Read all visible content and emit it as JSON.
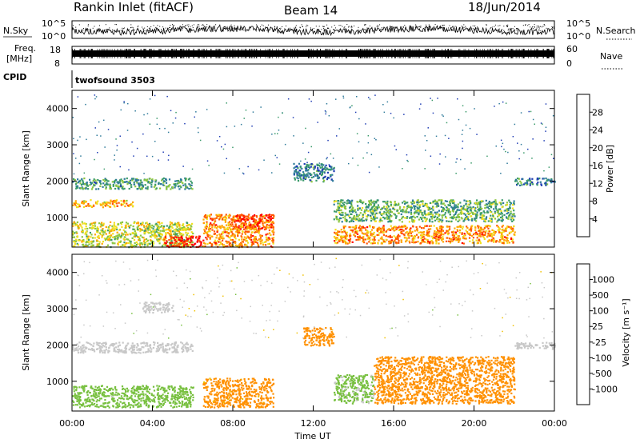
{
  "header": {
    "station": "Rankin Inlet (fitACF)",
    "beam": "Beam 14",
    "date": "18/Jun/2014"
  },
  "strips": {
    "nsky_label": "N.Sky",
    "nsky_ticks": [
      "10^5",
      "10^0"
    ],
    "nsearch_label": "N.Search",
    "nsearch_ticks": [
      "10^5",
      "10^0"
    ],
    "freq_label": "Freq.",
    "freq_unit": "[MHz]",
    "freq_ticks": [
      "18",
      "8"
    ],
    "nave_label": "Nave",
    "nave_ticks": [
      "60",
      "0"
    ],
    "cpid_label": "CPID",
    "cpid_value": "twofsound 3503"
  },
  "colorbars": {
    "power": {
      "label": "Power [dB]",
      "ticks": [
        "28",
        "24",
        "20",
        "16",
        "12",
        "8",
        "4"
      ],
      "colors": [
        "#0000ff",
        "#1e3cb4",
        "#2e7a9a",
        "#3a9a6a",
        "#8cc63f",
        "#f0e020",
        "#ffa500",
        "#ff5500",
        "#ff0000"
      ]
    },
    "velocity": {
      "label": "Velocity [m s⁻¹]",
      "ticks": [
        "1000",
        "500",
        "100",
        "25",
        "-25",
        "-100",
        "-500",
        "-1000"
      ],
      "colors": [
        "#2040c0",
        "#3a7a8a",
        "#3a9a5a",
        "#78c040",
        "#c8c8c8",
        "#f0c000",
        "#ff9000",
        "#ff6000",
        "#ff0000"
      ]
    }
  },
  "chart_data": [
    {
      "type": "heatmap",
      "panel": "power",
      "xlabel": "",
      "ylabel": "Slant Range [km]",
      "x_ticks": [
        "00:00",
        "04:00",
        "08:00",
        "12:00",
        "16:00",
        "20:00",
        "00:00"
      ],
      "y_ticks": [
        "1000",
        "2000",
        "3000",
        "4000"
      ],
      "ylim": [
        180,
        4500
      ],
      "x_range_hours": [
        0,
        24
      ],
      "regions": [
        {
          "x": [
            0.0,
            6.0
          ],
          "y": [
            200,
            900
          ],
          "value": 18
        },
        {
          "x": [
            0.0,
            3.0
          ],
          "y": [
            1300,
            1500
          ],
          "value": 22
        },
        {
          "x": [
            0.0,
            6.0
          ],
          "y": [
            1800,
            2100
          ],
          "value": 12
        },
        {
          "x": [
            4.5,
            6.5
          ],
          "y": [
            200,
            500
          ],
          "value": 30
        },
        {
          "x": [
            6.5,
            10.0
          ],
          "y": [
            200,
            1100
          ],
          "value": 24
        },
        {
          "x": [
            8.0,
            10.0
          ],
          "y": [
            700,
            1100
          ],
          "value": 28
        },
        {
          "x": [
            11.0,
            13.0
          ],
          "y": [
            2000,
            2500
          ],
          "value": 10
        },
        {
          "x": [
            13.0,
            22.0
          ],
          "y": [
            900,
            1500
          ],
          "value": 14
        },
        {
          "x": [
            13.0,
            22.0
          ],
          "y": [
            300,
            800
          ],
          "value": 24
        },
        {
          "x": [
            22.0,
            24.0
          ],
          "y": [
            1900,
            2100
          ],
          "value": 10
        }
      ]
    },
    {
      "type": "heatmap",
      "panel": "velocity",
      "xlabel": "Time UT",
      "ylabel": "Slant Range [km]",
      "x_ticks": [
        "00:00",
        "04:00",
        "08:00",
        "12:00",
        "16:00",
        "20:00",
        "00:00"
      ],
      "y_ticks": [
        "1000",
        "2000",
        "3000",
        "4000"
      ],
      "ylim": [
        180,
        4500
      ],
      "x_range_hours": [
        0,
        24
      ],
      "regions": [
        {
          "x": [
            0.0,
            6.0
          ],
          "y": [
            1800,
            2100
          ],
          "value": 0
        },
        {
          "x": [
            0.0,
            6.0
          ],
          "y": [
            300,
            900
          ],
          "value": 60
        },
        {
          "x": [
            3.5,
            5.0
          ],
          "y": [
            2900,
            3200
          ],
          "value": 0
        },
        {
          "x": [
            6.5,
            10.0
          ],
          "y": [
            300,
            1100
          ],
          "value": -150
        },
        {
          "x": [
            11.5,
            13.0
          ],
          "y": [
            2000,
            2500
          ],
          "value": -200
        },
        {
          "x": [
            13.0,
            15.0
          ],
          "y": [
            400,
            1200
          ],
          "value": 40
        },
        {
          "x": [
            15.0,
            22.0
          ],
          "y": [
            400,
            1700
          ],
          "value": -350
        },
        {
          "x": [
            22.0,
            24.0
          ],
          "y": [
            1900,
            2100
          ],
          "value": 0
        }
      ]
    }
  ]
}
